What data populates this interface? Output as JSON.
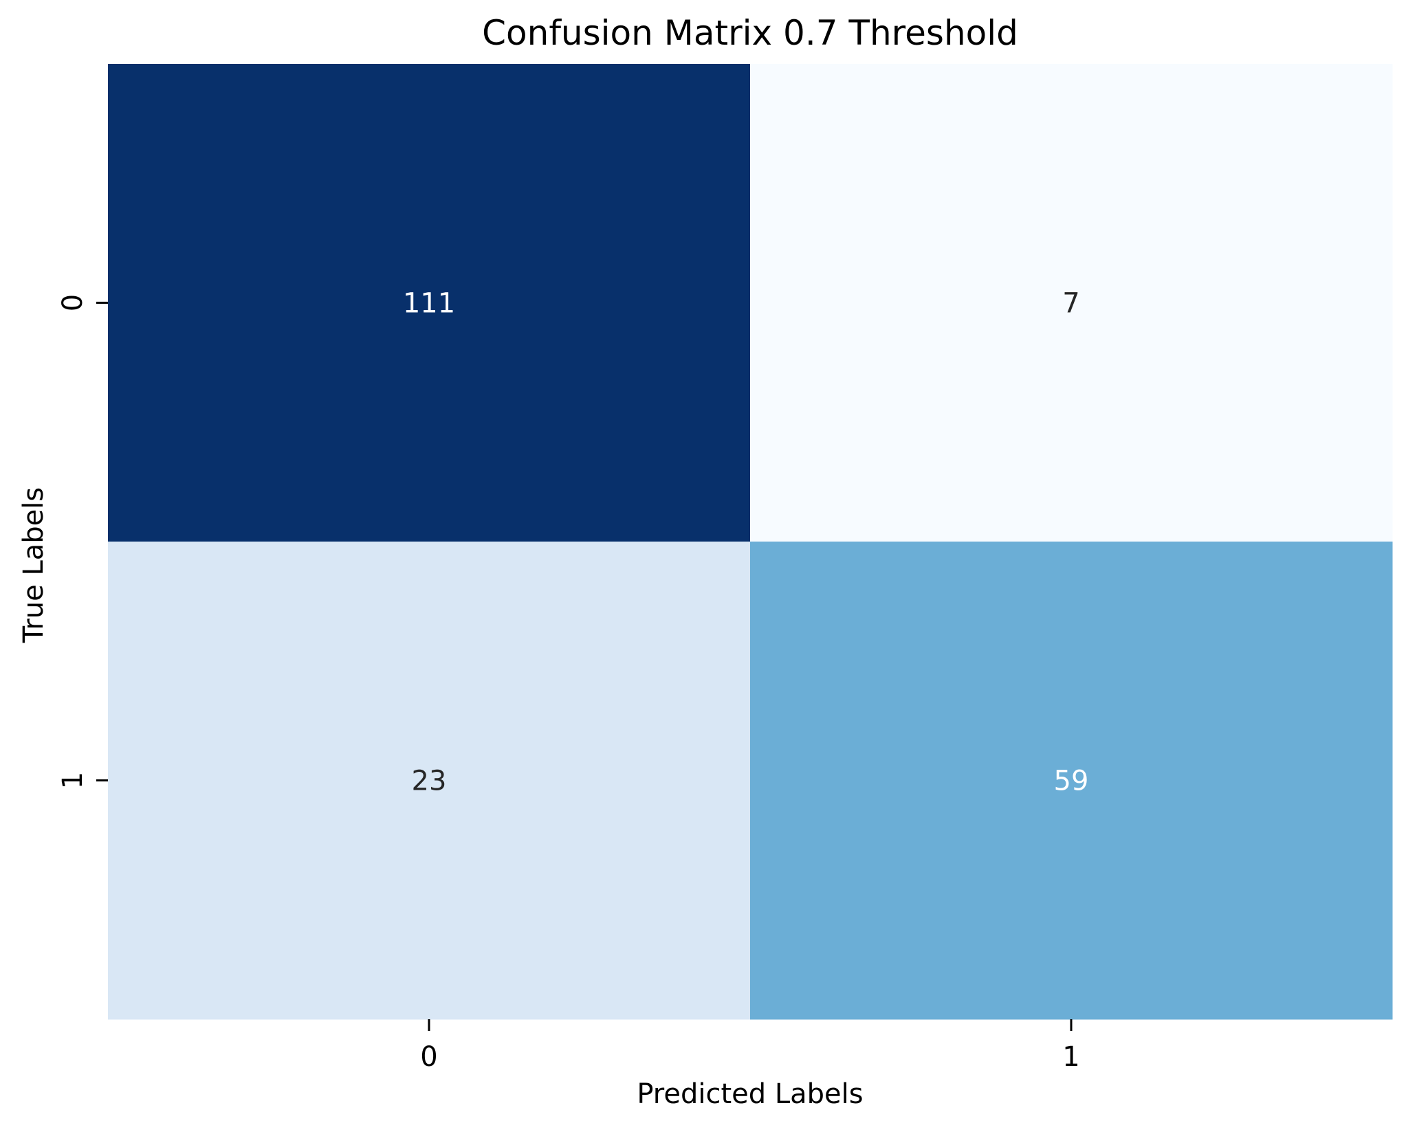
{
  "chart_data": {
    "type": "heatmap",
    "title": "Confusion Matrix 0.7 Threshold",
    "xlabel": "Predicted Labels",
    "ylabel": "True Labels",
    "x_categories": [
      "0",
      "1"
    ],
    "y_categories": [
      "0",
      "1"
    ],
    "values": [
      [
        111,
        7
      ],
      [
        23,
        59
      ]
    ],
    "colormap": "Blues",
    "cell_colors": [
      [
        "#08306b",
        "#f7fbff"
      ],
      [
        "#d9e7f5",
        "#6baed6"
      ]
    ],
    "annotation_colors": [
      [
        "#ffffff",
        "#262626"
      ],
      [
        "#262626",
        "#ffffff"
      ]
    ],
    "colorbar": false,
    "grid": false
  }
}
